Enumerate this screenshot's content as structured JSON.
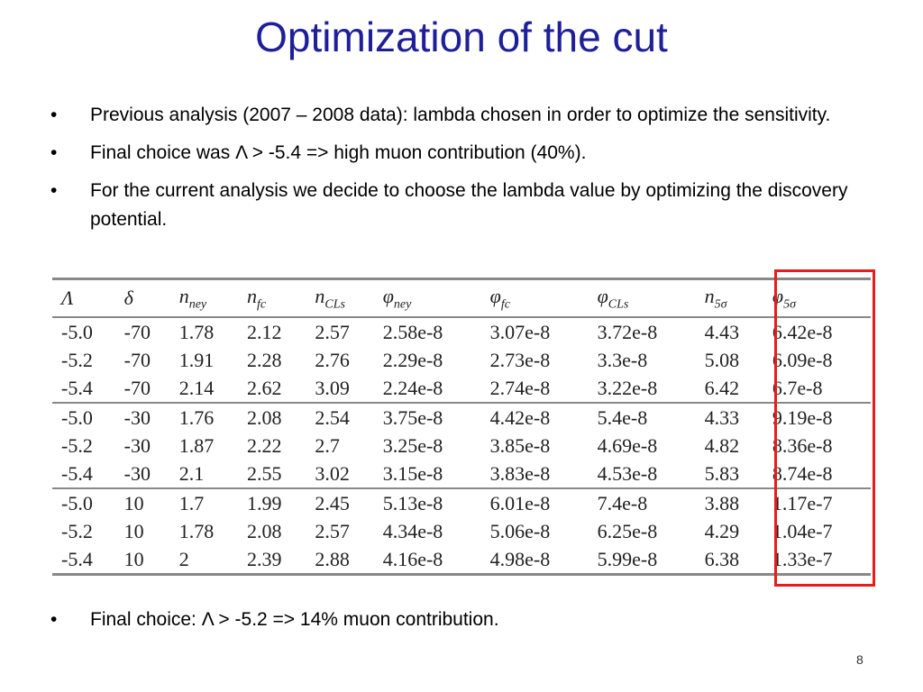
{
  "slide": {
    "title": "Optimization of the cut",
    "page_number": "8"
  },
  "bullets": [
    "Previous analysis (2007 – 2008 data): lambda chosen in order to optimize the sensitivity.",
    "Final choice was Λ > -5.4 => high muon contribution (40%).",
    "For the current analysis we decide to choose the lambda value by optimizing the discovery potential."
  ],
  "final_bullet": "Final choice: Λ > -5.2 => 14% muon contribution.",
  "table": {
    "headers": [
      {
        "sym": "Λ",
        "sub": ""
      },
      {
        "sym": "δ",
        "sub": ""
      },
      {
        "sym": "n",
        "sub": "ney"
      },
      {
        "sym": "n",
        "sub": "fc"
      },
      {
        "sym": "n",
        "sub": "CLs"
      },
      {
        "sym": "φ",
        "sub": "ney"
      },
      {
        "sym": "φ",
        "sub": "fc"
      },
      {
        "sym": "φ",
        "sub": "CLs"
      },
      {
        "sym": "n",
        "sub": "5σ"
      },
      {
        "sym": "φ",
        "sub": "5σ"
      }
    ],
    "rows": [
      [
        "-5.0",
        "-70",
        "1.78",
        "2.12",
        "2.57",
        "2.58e-8",
        "3.07e-8",
        "3.72e-8",
        "4.43",
        "6.42e-8"
      ],
      [
        "-5.2",
        "-70",
        "1.91",
        "2.28",
        "2.76",
        "2.29e-8",
        "2.73e-8",
        "3.3e-8",
        "5.08",
        "6.09e-8"
      ],
      [
        "-5.4",
        "-70",
        "2.14",
        "2.62",
        "3.09",
        "2.24e-8",
        "2.74e-8",
        "3.22e-8",
        "6.42",
        "6.7e-8"
      ],
      [
        "-5.0",
        "-30",
        "1.76",
        "2.08",
        "2.54",
        "3.75e-8",
        "4.42e-8",
        "5.4e-8",
        "4.33",
        "9.19e-8"
      ],
      [
        "-5.2",
        "-30",
        "1.87",
        "2.22",
        "2.7",
        "3.25e-8",
        "3.85e-8",
        "4.69e-8",
        "4.82",
        "8.36e-8"
      ],
      [
        "-5.4",
        "-30",
        "2.1",
        "2.55",
        "3.02",
        "3.15e-8",
        "3.83e-8",
        "4.53e-8",
        "5.83",
        "8.74e-8"
      ],
      [
        "-5.0",
        "10",
        "1.7",
        "1.99",
        "2.45",
        "5.13e-8",
        "6.01e-8",
        "7.4e-8",
        "3.88",
        "1.17e-7"
      ],
      [
        "-5.2",
        "10",
        "1.78",
        "2.08",
        "2.57",
        "4.34e-8",
        "5.06e-8",
        "6.25e-8",
        "4.29",
        "1.04e-7"
      ],
      [
        "-5.4",
        "10",
        "2",
        "2.39",
        "2.88",
        "4.16e-8",
        "4.98e-8",
        "5.99e-8",
        "6.38",
        "1.33e-7"
      ]
    ]
  },
  "colors": {
    "title": "#1f1f99",
    "highlight_box": "#e81c1c",
    "table_rules": "#888888"
  }
}
